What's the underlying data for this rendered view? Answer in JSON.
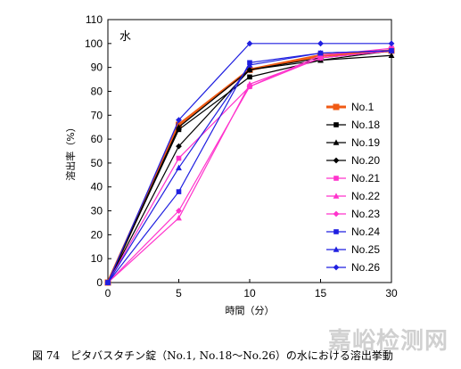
{
  "chart_data": {
    "type": "line",
    "panel_label": "水",
    "xlabel": "時間（分）",
    "ylabel": "溶出率（%）",
    "x": [
      0,
      5,
      10,
      15,
      30
    ],
    "x_ticks": [
      0,
      5,
      10,
      15,
      30
    ],
    "y_ticks": [
      0,
      10,
      20,
      30,
      40,
      50,
      60,
      70,
      80,
      90,
      100,
      110
    ],
    "ylim": [
      0,
      110
    ],
    "legend_position": "right",
    "series": [
      {
        "name": "No.1",
        "color": "#f05a14",
        "marker": "square",
        "values": [
          0,
          66,
          89,
          95,
          97
        ]
      },
      {
        "name": "No.18",
        "color": "#000000",
        "marker": "square",
        "values": [
          0,
          64,
          86,
          93,
          97
        ]
      },
      {
        "name": "No.19",
        "color": "#000000",
        "marker": "triangle",
        "values": [
          0,
          65,
          89,
          93,
          95
        ]
      },
      {
        "name": "No.20",
        "color": "#000000",
        "marker": "diamond",
        "values": [
          0,
          57,
          89,
          94,
          97
        ]
      },
      {
        "name": "No.21",
        "color": "#ff33cc",
        "marker": "square",
        "values": [
          0,
          52,
          82,
          95,
          98
        ]
      },
      {
        "name": "No.22",
        "color": "#ff33cc",
        "marker": "triangle",
        "values": [
          0,
          27,
          83,
          94,
          97
        ]
      },
      {
        "name": "No.23",
        "color": "#ff33cc",
        "marker": "diamond",
        "values": [
          0,
          30,
          82,
          94,
          97
        ]
      },
      {
        "name": "No.24",
        "color": "#1f1fe0",
        "marker": "square",
        "values": [
          0,
          38,
          92,
          96,
          97
        ]
      },
      {
        "name": "No.25",
        "color": "#1f1fe0",
        "marker": "triangle",
        "values": [
          0,
          48,
          91,
          96,
          97
        ]
      },
      {
        "name": "No.26",
        "color": "#1f1fe0",
        "marker": "diamond",
        "values": [
          0,
          68,
          100,
          100,
          100
        ]
      }
    ]
  },
  "caption": "図 74　ピタバスタチン錠（No.1, No.18～No.26）の水における溶出挙動",
  "watermark": "嘉峪检测网"
}
